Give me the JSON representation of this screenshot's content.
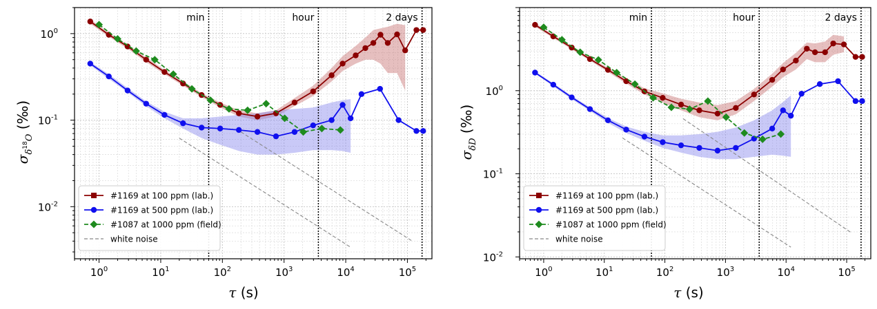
{
  "colors": {
    "lab100": "#8b0000",
    "lab500": "#1010ee",
    "field1000": "#1e8b1e",
    "white_noise": "#888888",
    "band_red": "#c87070",
    "band_blue": "#8888ee"
  },
  "chart_data": [
    {
      "type": "line",
      "log_x": true,
      "log_y": true,
      "xlim": [
        0.4,
        250000
      ],
      "ylim": [
        0.0025,
        2.0
      ],
      "xlabel_sym": "τ",
      "xlabel_unit": " (s)",
      "ylabel_base": "σ",
      "ylabel_sub": "δ",
      "ylabel_sup": "18",
      "ylabel_sub2": "O",
      "ylabel_unit": " (‰)",
      "xticks": [
        {
          "v": 1,
          "m": "0"
        },
        {
          "v": 10,
          "m": "1"
        },
        {
          "v": 100,
          "m": "2"
        },
        {
          "v": 1000,
          "m": "3"
        },
        {
          "v": 10000,
          "m": "4"
        },
        {
          "v": 100000,
          "m": "5"
        }
      ],
      "yticks": [
        {
          "v": 0.01,
          "m": "-2"
        },
        {
          "v": 0.1,
          "m": "-1"
        },
        {
          "v": 1,
          "m": "0"
        }
      ],
      "grid": true,
      "vlines": [
        {
          "x": 60,
          "label": "min"
        },
        {
          "x": 3600,
          "label": "hour"
        },
        {
          "x": 172800,
          "label": "2 days"
        }
      ],
      "legend_position": "lower-left",
      "series": [
        {
          "name": "#1169 at 100 ppm (lab.)",
          "key": "lab100",
          "marker": "circle",
          "legend_marker": "square",
          "dash": "solid",
          "x": [
            0.72,
            1.44,
            2.9,
            5.8,
            11.5,
            23,
            46,
            92,
            185,
            370,
            740,
            1480,
            2960,
            5900,
            8900,
            14500,
            20800,
            28000,
            36600,
            48000,
            68000,
            92000,
            140000,
            180000
          ],
          "y": [
            1.38,
            0.97,
            0.71,
            0.5,
            0.36,
            0.265,
            0.195,
            0.15,
            0.12,
            0.11,
            0.12,
            0.16,
            0.215,
            0.33,
            0.45,
            0.56,
            0.68,
            0.78,
            0.97,
            0.78,
            0.98,
            0.64,
            1.1,
            1.1
          ],
          "band_low": [
            1.3,
            0.92,
            0.67,
            0.47,
            0.34,
            0.25,
            0.185,
            0.14,
            0.11,
            0.1,
            0.11,
            0.145,
            0.19,
            0.28,
            0.37,
            0.45,
            0.5,
            0.5,
            0.45,
            0.35,
            0.35,
            0.22
          ],
          "band_high": [
            1.46,
            1.02,
            0.75,
            0.53,
            0.38,
            0.28,
            0.205,
            0.16,
            0.13,
            0.12,
            0.13,
            0.18,
            0.25,
            0.4,
            0.55,
            0.72,
            0.9,
            1.1,
            1.15,
            1.2,
            1.3,
            1.25
          ]
        },
        {
          "name": "#1169 at 500 ppm (lab.)",
          "key": "lab500",
          "marker": "circle",
          "legend_marker": "circle",
          "dash": "solid",
          "x": [
            0.72,
            1.44,
            2.9,
            5.8,
            11.5,
            23,
            46,
            92,
            185,
            370,
            740,
            1480,
            2960,
            5900,
            8900,
            12000,
            18000,
            36000,
            72000,
            140000,
            180000
          ],
          "y": [
            0.45,
            0.32,
            0.22,
            0.155,
            0.115,
            0.092,
            0.082,
            0.08,
            0.077,
            0.073,
            0.065,
            0.073,
            0.087,
            0.1,
            0.15,
            0.105,
            0.2,
            0.23,
            0.1,
            0.075,
            0.075
          ],
          "band_low": [
            0.43,
            0.3,
            0.21,
            0.145,
            0.105,
            0.08,
            0.062,
            0.052,
            0.044,
            0.04,
            0.04,
            0.042,
            0.045,
            0.045,
            0.044,
            0.042
          ],
          "band_high": [
            0.47,
            0.34,
            0.235,
            0.165,
            0.125,
            0.105,
            0.105,
            0.11,
            0.115,
            0.12,
            0.13,
            0.135,
            0.14,
            0.16,
            0.17,
            0.175
          ]
        },
        {
          "name": "#1087 at 1000 ppm (field)",
          "key": "field1000",
          "marker": "diamond",
          "legend_marker": "diamond",
          "dash": "dashed",
          "x": [
            1,
            2,
            4,
            8,
            16,
            32,
            64,
            128,
            256,
            512,
            1024,
            2048,
            4096,
            8192
          ],
          "y": [
            1.27,
            0.87,
            0.63,
            0.5,
            0.34,
            0.23,
            0.17,
            0.135,
            0.13,
            0.155,
            0.105,
            0.073,
            0.08,
            0.077
          ]
        },
        {
          "name": "white noise",
          "key": "white_noise",
          "marker": "none",
          "legend_marker": "line",
          "dash": "gray-dashed",
          "lines": [
            [
              [
                20,
                0.062
              ],
              [
                12000,
                0.0034
              ]
            ],
            [
              [
                200,
                0.073
              ],
              [
                120000,
                0.004
              ]
            ]
          ]
        }
      ]
    },
    {
      "type": "line",
      "log_x": true,
      "log_y": true,
      "xlim": [
        0.4,
        250000
      ],
      "ylim": [
        0.0095,
        10.0
      ],
      "xlabel_sym": "τ",
      "xlabel_unit": " (s)",
      "ylabel_base": "σ",
      "ylabel_sub": "δD",
      "ylabel_sup": "",
      "ylabel_sub2": "",
      "ylabel_unit": " (‰)",
      "xticks": [
        {
          "v": 1,
          "m": "0"
        },
        {
          "v": 10,
          "m": "1"
        },
        {
          "v": 100,
          "m": "2"
        },
        {
          "v": 1000,
          "m": "3"
        },
        {
          "v": 10000,
          "m": "4"
        },
        {
          "v": 100000,
          "m": "5"
        }
      ],
      "yticks": [
        {
          "v": 0.01,
          "m": "-2"
        },
        {
          "v": 0.1,
          "m": "-1"
        },
        {
          "v": 1,
          "m": "0"
        }
      ],
      "grid": true,
      "vlines": [
        {
          "x": 60,
          "label": "min"
        },
        {
          "x": 3600,
          "label": "hour"
        },
        {
          "x": 172800,
          "label": "2 days"
        }
      ],
      "legend_position": "lower-left",
      "series": [
        {
          "name": "#1169 at 100 ppm (lab.)",
          "key": "lab100",
          "marker": "circle",
          "legend_marker": "square",
          "dash": "solid",
          "x": [
            0.72,
            1.44,
            2.9,
            5.8,
            11.5,
            23,
            46,
            92,
            185,
            370,
            740,
            1480,
            2960,
            5900,
            8900,
            14500,
            22000,
            30000,
            44000,
            60000,
            90000,
            140000,
            180000
          ],
          "y": [
            6.2,
            4.5,
            3.3,
            2.4,
            1.78,
            1.3,
            0.98,
            0.82,
            0.68,
            0.58,
            0.53,
            0.62,
            0.9,
            1.35,
            1.8,
            2.3,
            3.2,
            2.9,
            2.9,
            3.7,
            3.6,
            2.55,
            2.55
          ],
          "band_low": [
            5.9,
            4.3,
            3.15,
            2.3,
            1.68,
            1.22,
            0.9,
            0.72,
            0.58,
            0.48,
            0.44,
            0.52,
            0.75,
            1.12,
            1.45,
            1.8,
            2.4,
            2.2,
            2.2,
            2.7,
            2.9
          ],
          "band_high": [
            6.5,
            4.7,
            3.45,
            2.5,
            1.88,
            1.4,
            1.07,
            0.93,
            0.8,
            0.72,
            0.67,
            0.75,
            1.05,
            1.6,
            2.15,
            2.85,
            3.8,
            3.7,
            3.9,
            4.7,
            4.5
          ]
        },
        {
          "name": "#1169 at 500 ppm (lab.)",
          "key": "lab500",
          "marker": "circle",
          "legend_marker": "circle",
          "dash": "solid",
          "x": [
            0.72,
            1.44,
            2.9,
            5.8,
            11.5,
            23,
            46,
            92,
            185,
            370,
            740,
            1480,
            2960,
            5900,
            8900,
            12000,
            18000,
            36000,
            72000,
            140000,
            180000
          ],
          "y": [
            1.65,
            1.18,
            0.83,
            0.6,
            0.44,
            0.34,
            0.28,
            0.24,
            0.22,
            0.205,
            0.19,
            0.205,
            0.265,
            0.35,
            0.58,
            0.5,
            0.92,
            1.2,
            1.3,
            0.75,
            0.75
          ],
          "band_low": [
            1.6,
            1.13,
            0.79,
            0.57,
            0.41,
            0.31,
            0.25,
            0.205,
            0.18,
            0.16,
            0.15,
            0.15,
            0.16,
            0.17,
            0.165,
            0.16
          ],
          "band_high": [
            1.7,
            1.23,
            0.87,
            0.63,
            0.47,
            0.37,
            0.32,
            0.29,
            0.29,
            0.3,
            0.32,
            0.36,
            0.44,
            0.58,
            0.73,
            0.88
          ]
        },
        {
          "name": "#1087 at 1000 ppm (field)",
          "key": "field1000",
          "marker": "diamond",
          "legend_marker": "diamond",
          "dash": "dashed",
          "x": [
            1,
            2,
            4,
            8,
            16,
            32,
            64,
            128,
            256,
            512,
            1024,
            2048,
            4096,
            8192
          ],
          "y": [
            5.8,
            4.1,
            2.9,
            2.35,
            1.65,
            1.2,
            0.82,
            0.63,
            0.6,
            0.75,
            0.48,
            0.31,
            0.26,
            0.3
          ]
        },
        {
          "name": "white noise",
          "key": "white_noise",
          "marker": "none",
          "legend_marker": "line",
          "dash": "gray-dashed",
          "lines": [
            [
              [
                20,
                0.27
              ],
              [
                12000,
                0.0131
              ]
            ],
            [
              [
                200,
                0.46
              ],
              [
                120000,
                0.0195
              ]
            ]
          ]
        }
      ]
    }
  ]
}
